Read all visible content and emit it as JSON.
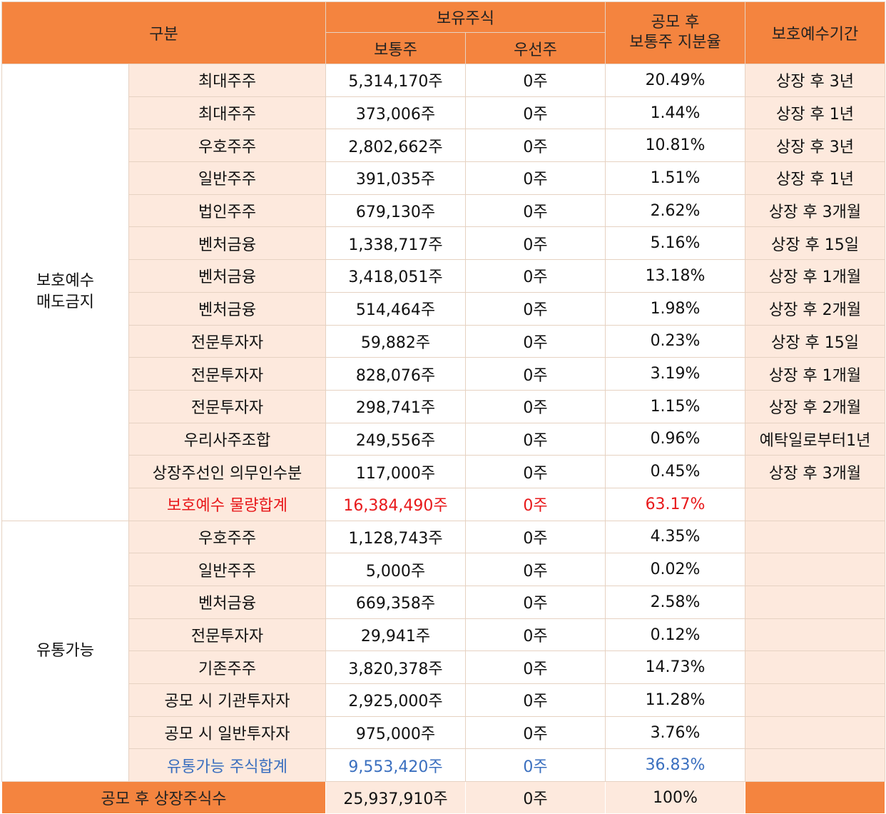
{
  "header": {
    "category": "구분",
    "holdings": "보유주식",
    "common": "보통주",
    "preferred": "우선주",
    "ratio": "공모 후\n보통주 지분율",
    "lockup_period": "보호예수기간"
  },
  "groups": {
    "locked": "보호예수\n매도금지",
    "tradable": "유통가능"
  },
  "locked_rows": [
    {
      "label": "최대주주",
      "common": "5,314,170주",
      "preferred": "0주",
      "ratio": "20.49%",
      "period": "상장 후 3년"
    },
    {
      "label": "최대주주",
      "common": "373,006주",
      "preferred": "0주",
      "ratio": "1.44%",
      "period": "상장 후 1년"
    },
    {
      "label": "우호주주",
      "common": "2,802,662주",
      "preferred": "0주",
      "ratio": "10.81%",
      "period": "상장 후 3년"
    },
    {
      "label": "일반주주",
      "common": "391,035주",
      "preferred": "0주",
      "ratio": "1.51%",
      "period": "상장 후 1년"
    },
    {
      "label": "법인주주",
      "common": "679,130주",
      "preferred": "0주",
      "ratio": "2.62%",
      "period": "상장 후 3개월"
    },
    {
      "label": "벤처금융",
      "common": "1,338,717주",
      "preferred": "0주",
      "ratio": "5.16%",
      "period": "상장 후 15일"
    },
    {
      "label": "벤처금융",
      "common": "3,418,051주",
      "preferred": "0주",
      "ratio": "13.18%",
      "period": "상장 후 1개월"
    },
    {
      "label": "벤처금융",
      "common": "514,464주",
      "preferred": "0주",
      "ratio": "1.98%",
      "period": "상장 후 2개월"
    },
    {
      "label": "전문투자자",
      "common": "59,882주",
      "preferred": "0주",
      "ratio": "0.23%",
      "period": "상장 후 15일"
    },
    {
      "label": "전문투자자",
      "common": "828,076주",
      "preferred": "0주",
      "ratio": "3.19%",
      "period": "상장 후 1개월"
    },
    {
      "label": "전문투자자",
      "common": "298,741주",
      "preferred": "0주",
      "ratio": "1.15%",
      "period": "상장 후 2개월"
    },
    {
      "label": "우리사주조합",
      "common": "249,556주",
      "preferred": "0주",
      "ratio": "0.96%",
      "period": "예탁일로부터1년"
    },
    {
      "label": "상장주선인 의무인수분",
      "common": "117,000주",
      "preferred": "0주",
      "ratio": "0.45%",
      "period": "상장 후 3개월"
    },
    {
      "label": "보호예수 물량합계",
      "common": "16,384,490주",
      "preferred": "0주",
      "ratio": "63.17%",
      "period": ""
    }
  ],
  "tradable_rows": [
    {
      "label": "우호주주",
      "common": "1,128,743주",
      "preferred": "0주",
      "ratio": "4.35%",
      "period": ""
    },
    {
      "label": "일반주주",
      "common": "5,000주",
      "preferred": "0주",
      "ratio": "0.02%",
      "period": ""
    },
    {
      "label": "벤처금융",
      "common": "669,358주",
      "preferred": "0주",
      "ratio": "2.58%",
      "period": ""
    },
    {
      "label": "전문투자자",
      "common": "29,941주",
      "preferred": "0주",
      "ratio": "0.12%",
      "period": ""
    },
    {
      "label": "기존주주",
      "common": "3,820,378주",
      "preferred": "0주",
      "ratio": "14.73%",
      "period": ""
    },
    {
      "label": "공모 시 기관투자자",
      "common": "2,925,000주",
      "preferred": "0주",
      "ratio": "11.28%",
      "period": ""
    },
    {
      "label": "공모 시 일반투자자",
      "common": "975,000주",
      "preferred": "0주",
      "ratio": "3.76%",
      "period": ""
    },
    {
      "label": "유통가능 주식합계",
      "common": "9,553,420주",
      "preferred": "0주",
      "ratio": "36.83%",
      "period": ""
    }
  ],
  "total": {
    "label": "공모 후 상장주식수",
    "common": "25,937,910주",
    "preferred": "0주",
    "ratio": "100%",
    "period": ""
  },
  "colors": {
    "header": "#f4843f",
    "label_bg": "#fde9dd",
    "sum_red": "#e8191b",
    "sum_blue": "#3a6fbf"
  }
}
